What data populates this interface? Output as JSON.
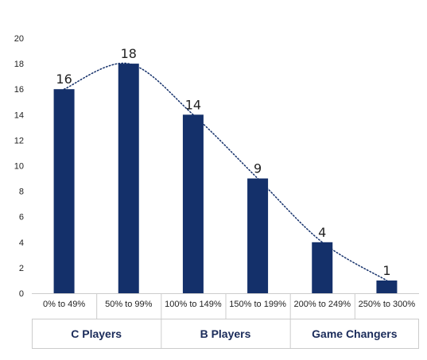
{
  "chart_data": {
    "type": "bar",
    "categories": [
      "0% to 49%",
      "50% to 99%",
      "100% to 149%",
      "150% to 199%",
      "200% to 249%",
      "250% to 300%"
    ],
    "values": [
      16,
      18,
      14,
      9,
      4,
      1
    ],
    "data_labels": [
      "16",
      "18",
      "14",
      "9",
      "4",
      "1"
    ],
    "y_ticks": [
      "0",
      "2",
      "4",
      "6",
      "8",
      "10",
      "12",
      "14",
      "16",
      "18",
      "20"
    ],
    "ylim": [
      0,
      20
    ],
    "groups": [
      {
        "label": "C Players",
        "span": [
          0,
          1
        ]
      },
      {
        "label": "B Players",
        "span": [
          2,
          3
        ]
      },
      {
        "label": "Game Changers",
        "span": [
          4,
          5
        ]
      }
    ],
    "trendline": "polynomial dotted",
    "grid": false,
    "legend": "none",
    "colors": {
      "bar": "#14306a",
      "trend": "#14306a",
      "axis": "#cccccc",
      "group_text": "#1a2b5a"
    }
  }
}
